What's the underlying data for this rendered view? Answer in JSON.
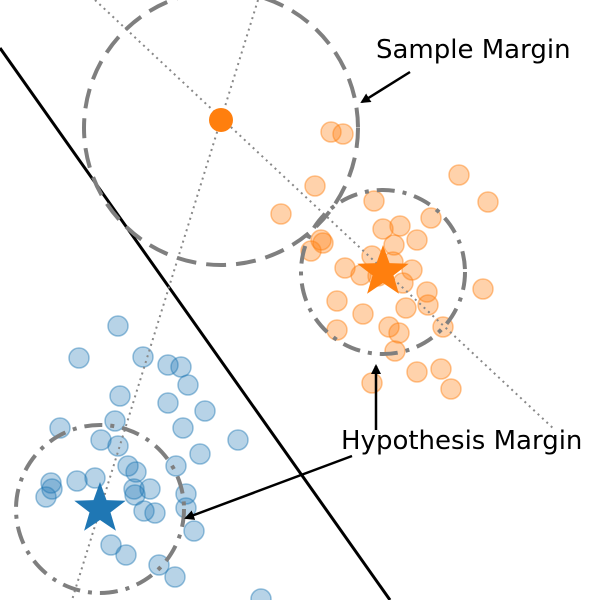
{
  "labels": {
    "sample_margin": "Sample Margin",
    "hypothesis_margin": "Hypothesis Margin"
  },
  "colors": {
    "orange": "#ff7f0e",
    "blue": "#1f77b4",
    "line": "#000000",
    "circle": "#7f7f7f",
    "dotted": "#888888"
  },
  "icons": {
    "orange_class_mean": "star",
    "blue_class_mean": "star",
    "highlighted_sample": "dot"
  }
}
